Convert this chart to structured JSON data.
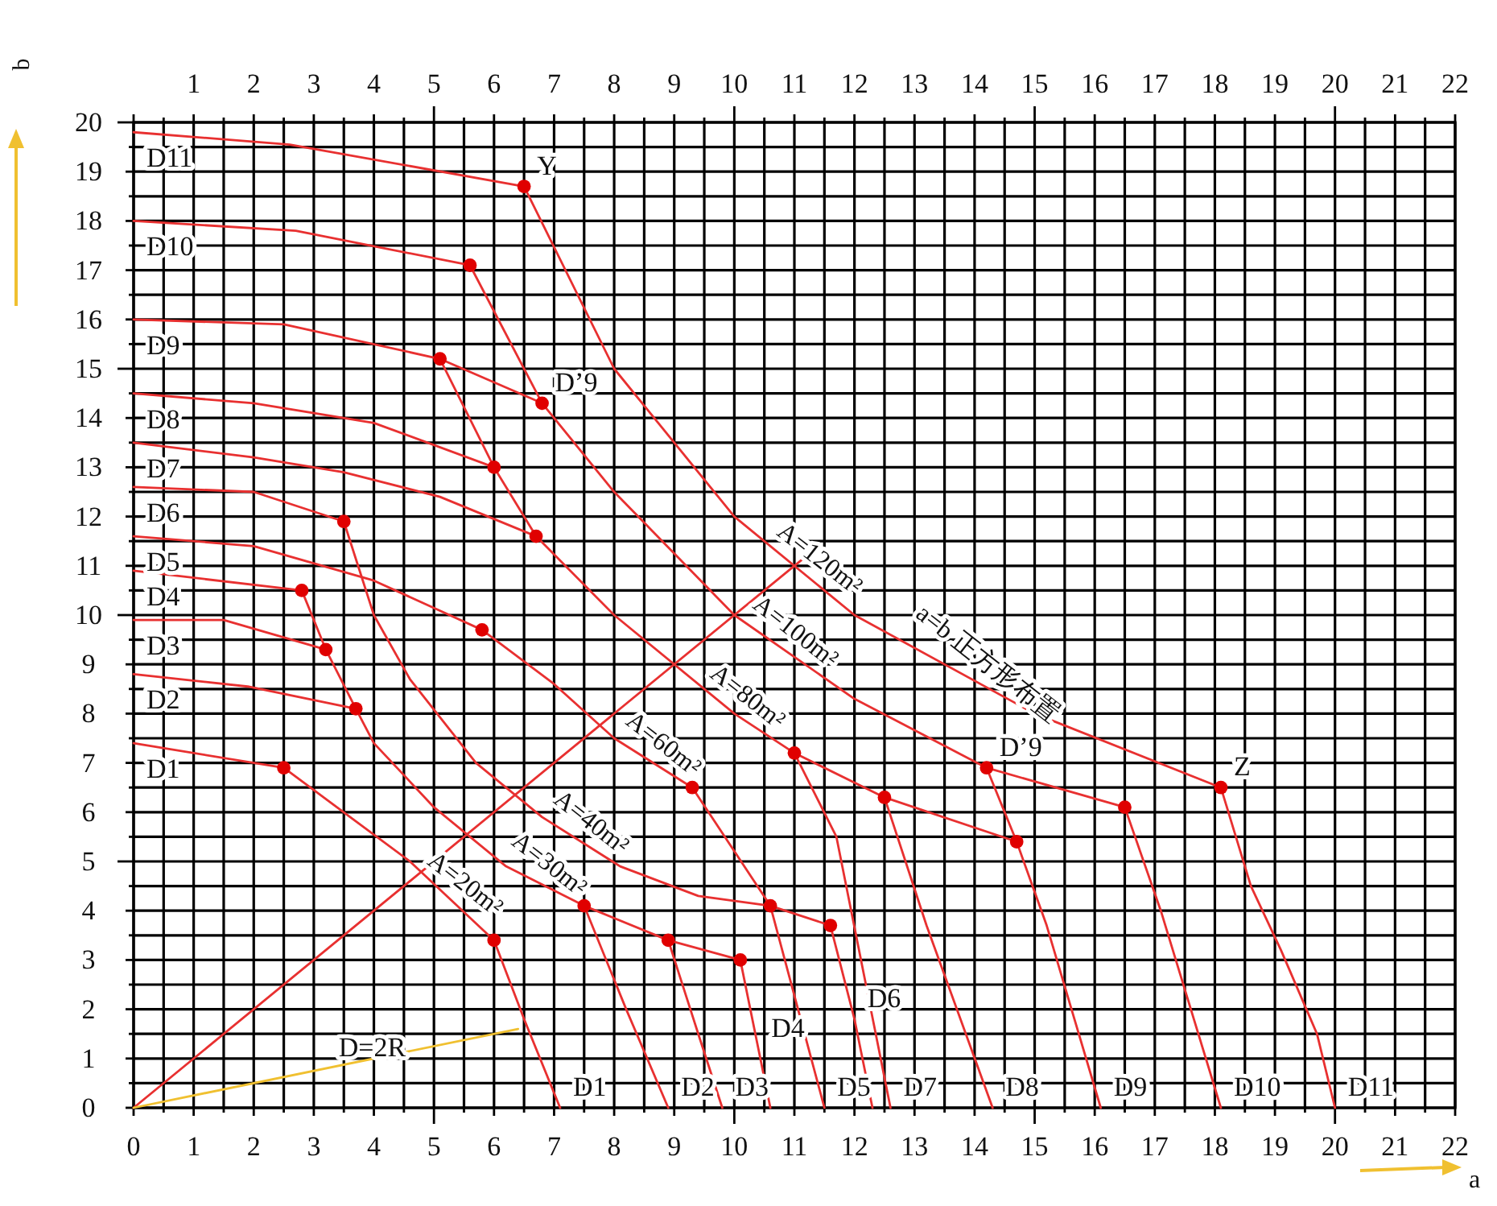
{
  "chart_data": {
    "type": "line",
    "xlabel": "a",
    "ylabel": "b",
    "xlim": [
      0,
      22
    ],
    "ylim": [
      0,
      20
    ],
    "x2lim": [
      0,
      22
    ],
    "grid": true,
    "xticks": [
      0,
      {
        "value": 0.5,
        "label": null
      },
      1,
      {
        "value": 1.5,
        "label": null
      },
      2,
      {
        "value": 2.5,
        "label": null
      },
      3,
      {
        "value": 3.5,
        "label": null
      },
      4,
      {
        "value": 4.5,
        "label": null
      },
      5,
      {
        "value": 5.5,
        "label": null
      },
      6,
      {
        "value": 6.5,
        "label": null
      },
      7,
      {
        "value": 7.5,
        "label": null
      },
      8,
      {
        "value": 8.5,
        "label": null
      },
      9,
      {
        "value": 9.5,
        "label": null
      },
      10,
      {
        "value": 10.5,
        "label": null
      },
      11,
      {
        "value": 11.5,
        "label": null
      },
      12,
      {
        "value": 12.5,
        "label": null
      },
      13,
      {
        "value": 13.5,
        "label": null
      },
      14,
      {
        "value": 14.5,
        "label": null
      },
      15,
      {
        "value": 15.5,
        "label": null
      },
      16,
      {
        "value": 16.5,
        "label": null
      },
      17,
      {
        "value": 17.5,
        "label": null
      },
      18,
      {
        "value": 18.5,
        "label": null
      },
      19,
      {
        "value": 19.5,
        "label": null
      },
      20,
      {
        "value": 20.5,
        "label": null
      },
      21,
      {
        "value": 21.5,
        "label": null
      },
      22
    ],
    "x2ticks": [
      {
        "value": 0,
        "label": null
      },
      {
        "value": 0.5,
        "label": null
      },
      1,
      {
        "value": 1.5,
        "label": null
      },
      2,
      {
        "value": 2.5,
        "label": null
      },
      3,
      {
        "value": 3.5,
        "label": null
      },
      4,
      {
        "value": 4.5,
        "label": null
      },
      5,
      {
        "value": 5.5,
        "label": null
      },
      6,
      {
        "value": 6.5,
        "label": null
      },
      7,
      {
        "value": 7.5,
        "label": null
      },
      8,
      {
        "value": 8.5,
        "label": null
      },
      9,
      {
        "value": 9.5,
        "label": null
      },
      10,
      {
        "value": 10.5,
        "label": null
      },
      11,
      {
        "value": 11.5,
        "label": null
      },
      12,
      {
        "value": 12.5,
        "label": null
      },
      13,
      {
        "value": 13.5,
        "label": null
      },
      14,
      {
        "value": 14.5,
        "label": null
      },
      15,
      {
        "value": 15.5,
        "label": null
      },
      16,
      {
        "value": 16.5,
        "label": null
      },
      17,
      {
        "value": 17.5,
        "label": null
      },
      18,
      {
        "value": 18.5,
        "label": null
      },
      19,
      {
        "value": 19.5,
        "label": null
      },
      20,
      {
        "value": 20.5,
        "label": null
      },
      21,
      {
        "value": 21.5,
        "label": null
      },
      22
    ],
    "yticks": [
      0,
      {
        "value": 0.5,
        "label": null
      },
      1,
      {
        "value": 1.5,
        "label": null
      },
      2,
      {
        "value": 2.5,
        "label": null
      },
      3,
      {
        "value": 3.5,
        "label": null
      },
      4,
      {
        "value": 4.5,
        "label": null
      },
      5,
      {
        "value": 5.5,
        "label": null
      },
      6,
      {
        "value": 6.5,
        "label": null
      },
      7,
      {
        "value": 7.5,
        "label": null
      },
      8,
      {
        "value": 8.5,
        "label": null
      },
      9,
      {
        "value": 9.5,
        "label": null
      },
      10,
      {
        "value": 10.5,
        "label": null
      },
      11,
      {
        "value": 11.5,
        "label": null
      },
      12,
      {
        "value": 12.5,
        "label": null
      },
      13,
      {
        "value": 13.5,
        "label": null
      },
      14,
      {
        "value": 14.5,
        "label": null
      },
      15,
      {
        "value": 15.5,
        "label": null
      },
      16,
      {
        "value": 16.5,
        "label": null
      },
      17,
      {
        "value": 17.5,
        "label": null
      },
      18,
      {
        "value": 18.5,
        "label": null
      },
      19,
      {
        "value": 19.5,
        "label": null
      },
      20
    ],
    "series": [
      {
        "type": "line",
        "color": "#e83030",
        "x": [
          0,
          2.6,
          6.5,
          8,
          10,
          12,
          15,
          18.1,
          18.6,
          19.1,
          19.7,
          20.0
        ],
        "values": [
          19.8,
          19.55,
          18.7,
          15,
          12,
          10,
          8,
          6.5,
          4.5,
          3.2,
          1.5,
          0
        ]
      },
      {
        "type": "line",
        "color": "#e83030",
        "x": [
          0,
          2.7,
          5.6,
          6.8
        ],
        "values": [
          18,
          17.8,
          17.1,
          14.3
        ]
      },
      {
        "type": "line",
        "color": "#e83030",
        "x": [
          6.8,
          8,
          10,
          12,
          14.2,
          16.5,
          17.1,
          17.6,
          18.1
        ],
        "values": [
          14.3,
          12.5,
          10,
          8.3,
          6.9,
          6.1,
          4.0,
          2.0,
          0
        ]
      },
      {
        "type": "line",
        "color": "#e83030",
        "x": [
          0,
          2.5,
          5.1,
          6.8
        ],
        "values": [
          16,
          15.9,
          15.2,
          14.3
        ]
      },
      {
        "type": "line",
        "color": "#e83030",
        "x": [
          5.1,
          6.0,
          6.7,
          8,
          10,
          11.0,
          12.5,
          14.7,
          15.2,
          16.1
        ],
        "values": [
          15.2,
          13.0,
          11.6,
          10,
          8,
          7.2,
          6.3,
          5.4,
          3.7,
          0
        ]
      },
      {
        "type": "line",
        "color": "#e83030",
        "x": [
          14.2,
          14.7
        ],
        "values": [
          6.9,
          5.4
        ]
      },
      {
        "type": "line",
        "color": "#e83030",
        "x": [
          0,
          2,
          4,
          6.0
        ],
        "values": [
          14.5,
          14.3,
          13.9,
          13.0
        ]
      },
      {
        "type": "line",
        "color": "#e83030",
        "x": [
          12.5,
          13.2,
          14.3
        ],
        "values": [
          6.3,
          3.7,
          0
        ]
      },
      {
        "type": "line",
        "color": "#e83030",
        "x": [
          0,
          2,
          3.5,
          5.1,
          6.7
        ],
        "values": [
          13.5,
          13.2,
          12.9,
          12.4,
          11.6
        ]
      },
      {
        "type": "line",
        "color": "#e83030",
        "x": [
          11.0,
          11.7,
          12.6
        ],
        "values": [
          7.2,
          5.5,
          0
        ]
      },
      {
        "type": "line",
        "color": "#e83030",
        "x": [
          0,
          2.0,
          3.5
        ],
        "values": [
          12.6,
          12.5,
          11.9
        ]
      },
      {
        "type": "line",
        "color": "#e83030",
        "x": [
          3.5,
          4.0,
          4.6,
          5.7,
          6.8,
          8.1,
          9.4,
          10.6,
          11.6
        ],
        "values": [
          11.9,
          10.0,
          8.7,
          7.0,
          5.9,
          4.9,
          4.3,
          4.1,
          3.7
        ]
      },
      {
        "type": "line",
        "color": "#e83030",
        "x": [
          11.6,
          12.0,
          12.3
        ],
        "values": [
          3.7,
          1.8,
          0
        ]
      },
      {
        "type": "line",
        "color": "#e83030",
        "x": [
          0,
          2.0,
          4.0,
          5.8
        ],
        "values": [
          11.6,
          11.4,
          10.7,
          9.7
        ]
      },
      {
        "type": "line",
        "color": "#e83030",
        "x": [
          5.8,
          7,
          8,
          9.3,
          10.6,
          11.5
        ],
        "values": [
          9.7,
          8.6,
          7.5,
          6.5,
          4.1,
          0
        ]
      },
      {
        "type": "line",
        "color": "#e83030",
        "x": [
          0,
          2.8
        ],
        "values": [
          10.9,
          10.5
        ]
      },
      {
        "type": "line",
        "color": "#e83030",
        "x": [
          2.8,
          3.2,
          3.7,
          4.0,
          5.0,
          6.2,
          7.5,
          8.9,
          10.1
        ],
        "values": [
          10.5,
          9.3,
          8.1,
          7.4,
          6.1,
          4.9,
          4.1,
          3.4,
          3.0
        ]
      },
      {
        "type": "line",
        "color": "#e83030",
        "x": [
          0,
          1.5,
          3.2
        ],
        "values": [
          9.9,
          9.9,
          9.3
        ]
      },
      {
        "type": "line",
        "color": "#e83030",
        "x": [
          0,
          1.9,
          3.7
        ],
        "values": [
          8.8,
          8.55,
          8.1
        ]
      },
      {
        "type": "line",
        "color": "#e83030",
        "x": [
          0,
          2.5,
          4.6,
          6.0,
          6.5,
          7.1
        ],
        "values": [
          7.4,
          6.9,
          5.0,
          3.4,
          1.8,
          0
        ]
      },
      {
        "type": "line",
        "color": "#e83030",
        "x": [
          7.5,
          8.2,
          8.9
        ],
        "values": [
          4.1,
          2.0,
          0
        ]
      },
      {
        "type": "line",
        "color": "#e83030",
        "x": [
          8.9,
          9.4,
          9.8
        ],
        "values": [
          3.4,
          1.5,
          0
        ]
      },
      {
        "type": "line",
        "color": "#e83030",
        "x": [
          10.1,
          10.4,
          10.6
        ],
        "values": [
          3.0,
          1.2,
          0
        ]
      },
      {
        "type": "line",
        "color": "#e83030",
        "x": [
          0,
          11.2
        ],
        "values": [
          0,
          11.2
        ]
      },
      {
        "type": "line",
        "color": "#f0c030",
        "x": [
          0,
          6.4
        ],
        "values": [
          0,
          1.6
        ]
      },
      {
        "type": "scatter",
        "color": "#e00000",
        "marker": "circle",
        "x": [
          6.5,
          5.6,
          5.1,
          6.8,
          6.0,
          6.7,
          3.5,
          2.8,
          3.2,
          3.7,
          2.5,
          5.8,
          9.3,
          6.0,
          7.5,
          8.9,
          10.1,
          10.6,
          11.6,
          11.0,
          12.5,
          14.2,
          14.7,
          16.5,
          18.1
        ],
        "values": [
          18.7,
          17.1,
          15.2,
          14.3,
          13.0,
          11.6,
          11.9,
          10.5,
          9.3,
          8.1,
          6.9,
          9.7,
          6.5,
          3.4,
          4.1,
          3.4,
          3.0,
          4.1,
          3.7,
          7.2,
          6.3,
          6.9,
          5.4,
          6.1,
          6.5
        ]
      }
    ],
    "annotations": [
      {
        "text": "a=b  正方形布置",
        "x": 14,
        "y": 8.67
      },
      {
        "text": "A=120m²",
        "x": 11.2,
        "y": 10.8
      },
      {
        "text": "A=100m²",
        "x": 10.8,
        "y": 9.32
      },
      {
        "text": "A=80m²",
        "x": 10,
        "y": 8
      },
      {
        "text": "A=60m²",
        "x": 8.6,
        "y": 7.04
      },
      {
        "text": "A=40m²",
        "x": 7.4,
        "y": 5.45
      },
      {
        "text": "A=30m²",
        "x": 6.7,
        "y": 4.6
      },
      {
        "text": "A=20m²",
        "x": 5.3,
        "y": 4.2
      },
      {
        "text": "D=2R",
        "x": 3.2,
        "y": 0.8
      },
      {
        "text": "Y",
        "x": 6.5,
        "y": 18.7
      },
      {
        "text": "Z",
        "x": 18.1,
        "y": 6.5
      },
      {
        "text": "D’9",
        "x": 6.8,
        "y": 14.3
      },
      {
        "text": "D’9",
        "x": 14.2,
        "y": 6.9
      },
      {
        "text": "D11",
        "x": 0,
        "y": 19.8
      },
      {
        "text": "D10",
        "x": 0,
        "y": 18
      },
      {
        "text": "D9",
        "x": 0,
        "y": 16
      },
      {
        "text": "D8",
        "x": 0,
        "y": 14.5
      },
      {
        "text": "D7",
        "x": 0,
        "y": 13.5
      },
      {
        "text": "D6",
        "x": 0,
        "y": 12.6
      },
      {
        "text": "D5",
        "x": 0,
        "y": 11.6
      },
      {
        "text": "D4",
        "x": 0,
        "y": 10.9
      },
      {
        "text": "D3",
        "x": 0,
        "y": 9.9
      },
      {
        "text": "D2",
        "x": 0,
        "y": 8.8
      },
      {
        "text": "D1",
        "x": 0,
        "y": 7.4
      },
      {
        "text": "D1",
        "x": 7.1,
        "y": 0
      },
      {
        "text": "D2",
        "x": 8.9,
        "y": 0
      },
      {
        "text": "D3",
        "x": 9.8,
        "y": 0
      },
      {
        "text": "D4",
        "x": 10.4,
        "y": 1.2
      },
      {
        "text": "D5",
        "x": 11.5,
        "y": 0
      },
      {
        "text": "D6",
        "x": 12.0,
        "y": 1.8
      },
      {
        "text": "D7",
        "x": 12.6,
        "y": 0
      },
      {
        "text": "D8",
        "x": 14.3,
        "y": 0
      },
      {
        "text": "D9",
        "x": 16.1,
        "y": 0
      },
      {
        "text": "D10",
        "x": 18.1,
        "y": 0
      },
      {
        "text": "D11",
        "x": 20.0,
        "y": 0
      }
    ]
  }
}
